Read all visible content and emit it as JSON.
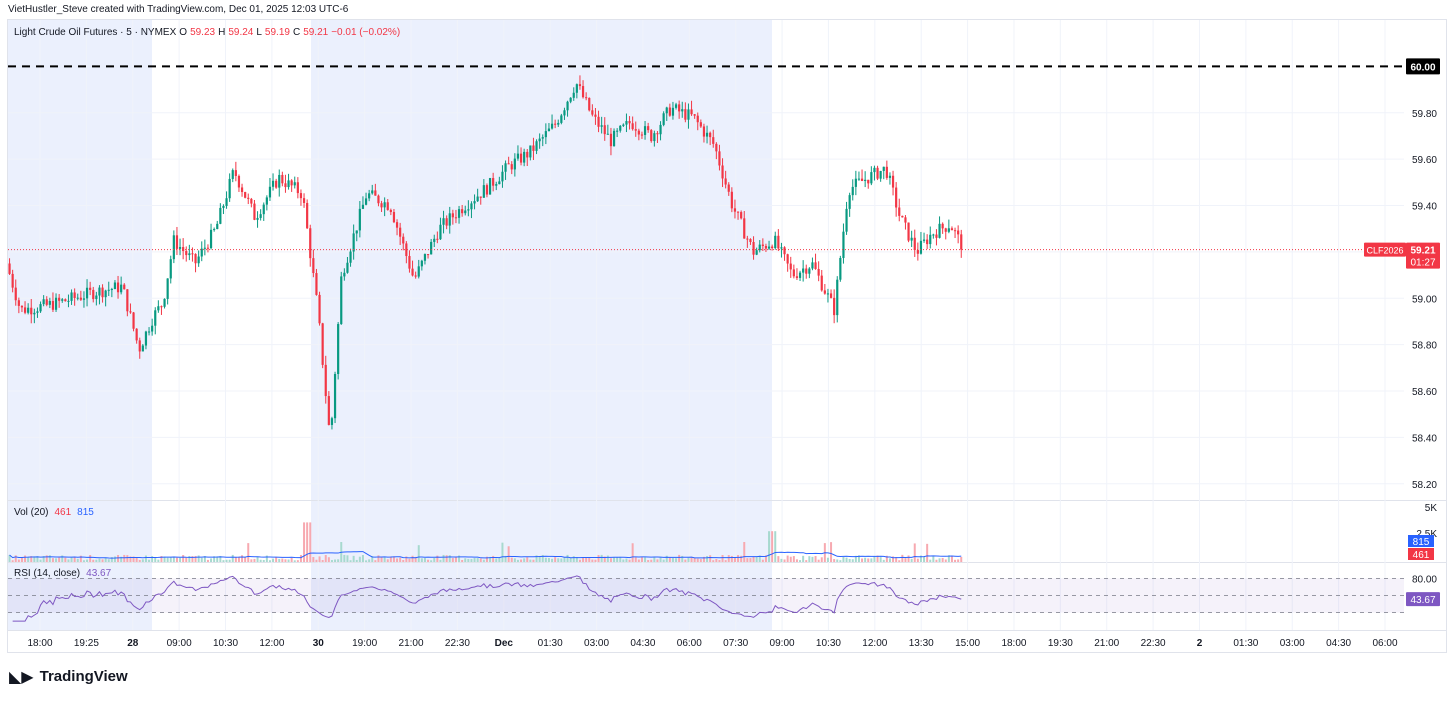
{
  "header": {
    "attribution": "VietHustler_Steve created with TradingView.com, Dec 01, 2025 12:03 UTC-6"
  },
  "legend": {
    "symbol": "Light Crude Oil Futures · 5 · NYMEX",
    "o_label": "O",
    "o_value": "59.23",
    "h_label": "H",
    "h_value": "59.24",
    "l_label": "L",
    "l_value": "59.19",
    "c_label": "C",
    "c_value": "59.21",
    "change": "−0.01 (−0.02%)"
  },
  "volume_legend": {
    "label": "Vol (20)",
    "value": "461",
    "ma": "815"
  },
  "rsi_legend": {
    "label": "RSI (14, close)",
    "value": "43.67"
  },
  "footer": {
    "brand": "TradingView"
  },
  "colors": {
    "up": "#089981",
    "down": "#f23645",
    "session_bg": "#e8edfd",
    "rsi": "#7e57c2",
    "vol_ma": "#2962ff"
  },
  "chart_data": {
    "type": "candlestick",
    "title": "Light Crude Oil Futures · 5 · NYMEX",
    "y_ticks": [
      "60.00",
      "59.80",
      "59.60",
      "59.40",
      "59.20",
      "59.00",
      "58.80",
      "58.60",
      "58.40",
      "58.20"
    ],
    "ylim": [
      58.13,
      60.2
    ],
    "x_ticks": [
      "18:00",
      "19:25",
      "28",
      "09:00",
      "10:30",
      "12:00",
      "30",
      "19:00",
      "21:00",
      "22:30",
      "Dec",
      "01:30",
      "03:00",
      "04:30",
      "06:00",
      "07:30",
      "09:00",
      "10:30",
      "12:00",
      "13:30",
      "15:00",
      "18:00",
      "19:30",
      "21:00",
      "22:30",
      "2",
      "01:30",
      "03:00",
      "04:30",
      "06:00"
    ],
    "horizontal_line": {
      "value": 60.0,
      "label": "60.00",
      "style": "dashed"
    },
    "last_price": {
      "symbol": "CLF2026",
      "value": "59.21",
      "countdown": "01:27"
    },
    "price_path": [
      [
        0.0,
        59.15
      ],
      [
        0.01,
        58.95
      ],
      [
        0.03,
        58.97
      ],
      [
        0.048,
        59.0
      ],
      [
        0.065,
        59.03
      ],
      [
        0.083,
        59.05
      ],
      [
        0.095,
        58.78
      ],
      [
        0.105,
        58.92
      ],
      [
        0.112,
        58.98
      ],
      [
        0.12,
        59.25
      ],
      [
        0.135,
        59.15
      ],
      [
        0.15,
        59.3
      ],
      [
        0.163,
        59.55
      ],
      [
        0.178,
        59.35
      ],
      [
        0.195,
        59.52
      ],
      [
        0.212,
        59.45
      ],
      [
        0.223,
        58.95
      ],
      [
        0.232,
        58.38
      ],
      [
        0.24,
        59.1
      ],
      [
        0.258,
        59.45
      ],
      [
        0.275,
        59.4
      ],
      [
        0.292,
        59.08
      ],
      [
        0.31,
        59.3
      ],
      [
        0.328,
        59.4
      ],
      [
        0.345,
        59.48
      ],
      [
        0.36,
        59.57
      ],
      [
        0.375,
        59.63
      ],
      [
        0.393,
        59.75
      ],
      [
        0.408,
        59.93
      ],
      [
        0.42,
        59.78
      ],
      [
        0.433,
        59.68
      ],
      [
        0.447,
        59.76
      ],
      [
        0.462,
        59.7
      ],
      [
        0.476,
        59.82
      ],
      [
        0.492,
        59.78
      ],
      [
        0.507,
        59.66
      ],
      [
        0.52,
        59.4
      ],
      [
        0.535,
        59.2
      ],
      [
        0.55,
        59.25
      ],
      [
        0.563,
        59.1
      ],
      [
        0.577,
        59.15
      ],
      [
        0.593,
        58.95
      ],
      [
        0.603,
        59.47
      ],
      [
        0.617,
        59.52
      ],
      [
        0.63,
        59.56
      ],
      [
        0.64,
        59.35
      ],
      [
        0.652,
        59.2
      ],
      [
        0.663,
        59.28
      ],
      [
        0.676,
        59.32
      ],
      [
        0.686,
        59.21
      ]
    ],
    "volume": {
      "scale_ticks": [
        "5K",
        "2.5K"
      ],
      "ma_value": 815,
      "last_value": 461
    },
    "rsi": {
      "upper": 80,
      "lower": 20,
      "upper_label": "80.00",
      "last": 43.67
    }
  }
}
